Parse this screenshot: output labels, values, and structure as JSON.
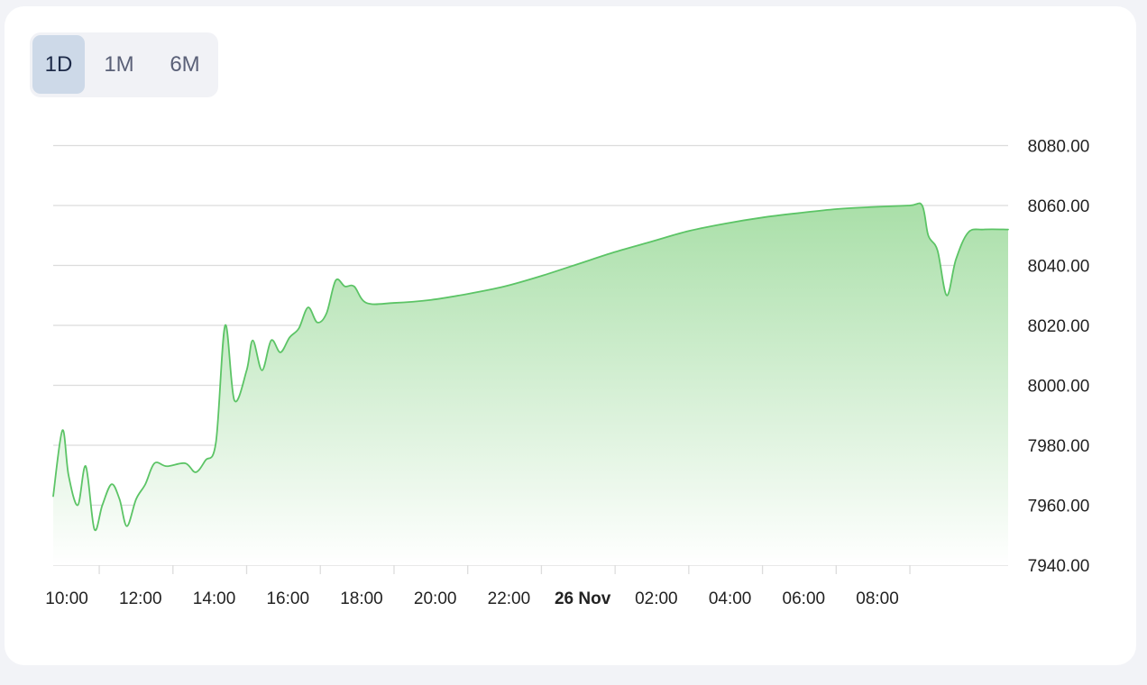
{
  "range_tabs": [
    {
      "label": "1D",
      "active": true
    },
    {
      "label": "1M",
      "active": false
    },
    {
      "label": "6M",
      "active": false
    }
  ],
  "colors": {
    "line": "#5cc466",
    "fill_top": "#a9dfa8",
    "fill_bottom": "#ffffff",
    "grid": "#dcdcdc",
    "active_tab": "#cdd9e8"
  },
  "chart_data": {
    "type": "area",
    "title": "",
    "xlabel": "",
    "ylabel": "",
    "ylim": [
      7940,
      8080
    ],
    "y_ticks": [
      {
        "value": 8080,
        "label": "8080.00"
      },
      {
        "value": 8060,
        "label": "8060.00"
      },
      {
        "value": 8040,
        "label": "8040.00"
      },
      {
        "value": 8020,
        "label": "8020.00"
      },
      {
        "value": 8000,
        "label": "8000.00"
      },
      {
        "value": 7980,
        "label": "7980.00"
      },
      {
        "value": 7960,
        "label": "7960.00"
      },
      {
        "value": 7940,
        "label": "7940.00"
      }
    ],
    "x_range": [
      "25 Nov 08:45",
      "26 Nov 10:40"
    ],
    "x_ticks": [
      {
        "time": "25 Nov 10:00",
        "label": "10:00",
        "bold": false
      },
      {
        "time": "25 Nov 12:00",
        "label": "12:00",
        "bold": false
      },
      {
        "time": "25 Nov 14:00",
        "label": "14:00",
        "bold": false
      },
      {
        "time": "25 Nov 16:00",
        "label": "16:00",
        "bold": false
      },
      {
        "time": "25 Nov 18:00",
        "label": "18:00",
        "bold": false
      },
      {
        "time": "25 Nov 20:00",
        "label": "20:00",
        "bold": false
      },
      {
        "time": "25 Nov 22:00",
        "label": "22:00",
        "bold": false
      },
      {
        "time": "26 Nov 00:00",
        "label": "26 Nov",
        "bold": true
      },
      {
        "time": "26 Nov 02:00",
        "label": "02:00",
        "bold": false
      },
      {
        "time": "26 Nov 04:00",
        "label": "04:00",
        "bold": false
      },
      {
        "time": "26 Nov 06:00",
        "label": "06:00",
        "bold": false
      },
      {
        "time": "26 Nov 08:00",
        "label": "08:00",
        "bold": false
      }
    ],
    "series": [
      {
        "points": [
          [
            "25 Nov 08:45",
            7963
          ],
          [
            "25 Nov 09:00",
            7985
          ],
          [
            "25 Nov 09:10",
            7970
          ],
          [
            "25 Nov 09:25",
            7960
          ],
          [
            "25 Nov 09:38",
            7973
          ],
          [
            "25 Nov 09:52",
            7952
          ],
          [
            "25 Nov 10:05",
            7960
          ],
          [
            "25 Nov 10:20",
            7967
          ],
          [
            "25 Nov 10:33",
            7962
          ],
          [
            "25 Nov 10:45",
            7953
          ],
          [
            "25 Nov 11:00",
            7962
          ],
          [
            "25 Nov 11:15",
            7967
          ],
          [
            "25 Nov 11:30",
            7974
          ],
          [
            "25 Nov 11:50",
            7973
          ],
          [
            "25 Nov 12:20",
            7974
          ],
          [
            "25 Nov 12:37",
            7971
          ],
          [
            "25 Nov 12:53",
            7975
          ],
          [
            "25 Nov 13:10",
            7981
          ],
          [
            "25 Nov 13:25",
            8020
          ],
          [
            "25 Nov 13:40",
            7995
          ],
          [
            "25 Nov 14:00",
            8005
          ],
          [
            "25 Nov 14:10",
            8015
          ],
          [
            "25 Nov 14:25",
            8005
          ],
          [
            "25 Nov 14:40",
            8015
          ],
          [
            "25 Nov 14:55",
            8011
          ],
          [
            "25 Nov 15:10",
            8016
          ],
          [
            "25 Nov 15:25",
            8019
          ],
          [
            "25 Nov 15:40",
            8026
          ],
          [
            "25 Nov 15:55",
            8021
          ],
          [
            "25 Nov 16:10",
            8024
          ],
          [
            "25 Nov 16:25",
            8035
          ],
          [
            "25 Nov 16:40",
            8033
          ],
          [
            "25 Nov 16:55",
            8033
          ],
          [
            "25 Nov 17:15",
            8027.5
          ],
          [
            "25 Nov 18:00",
            8027.5
          ],
          [
            "25 Nov 19:00",
            8028.5
          ],
          [
            "25 Nov 20:00",
            8030.5
          ],
          [
            "25 Nov 21:00",
            8033
          ],
          [
            "25 Nov 22:00",
            8036.5
          ],
          [
            "25 Nov 23:00",
            8040.5
          ],
          [
            "26 Nov 00:00",
            8044.5
          ],
          [
            "26 Nov 01:00",
            8048
          ],
          [
            "26 Nov 02:00",
            8051.5
          ],
          [
            "26 Nov 03:00",
            8054
          ],
          [
            "26 Nov 04:00",
            8056
          ],
          [
            "26 Nov 05:00",
            8057.5
          ],
          [
            "26 Nov 06:00",
            8058.8
          ],
          [
            "26 Nov 07:00",
            8059.5
          ],
          [
            "26 Nov 08:00",
            8060
          ],
          [
            "26 Nov 08:20",
            8060
          ],
          [
            "26 Nov 08:30",
            8050
          ],
          [
            "26 Nov 08:45",
            8045
          ],
          [
            "26 Nov 09:00",
            8030
          ],
          [
            "26 Nov 09:15",
            8042
          ],
          [
            "26 Nov 09:35",
            8051
          ],
          [
            "26 Nov 10:00",
            8052
          ],
          [
            "26 Nov 10:40",
            8052
          ]
        ]
      }
    ]
  }
}
